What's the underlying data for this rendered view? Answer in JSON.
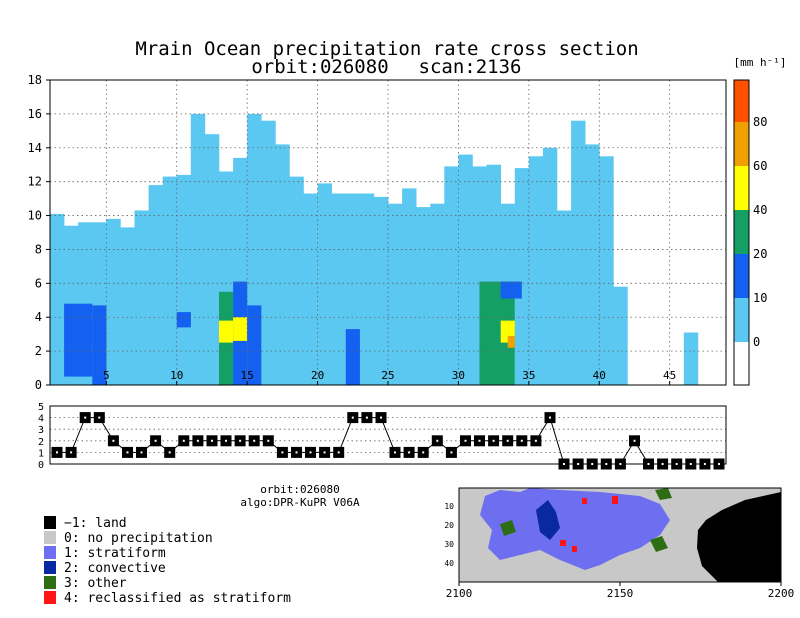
{
  "title": {
    "line1": "Mrain Ocean precipitation rate cross section",
    "line2_orbit": "orbit:026080",
    "line2_scan": "scan:2136"
  },
  "info": {
    "orbit": "orbit:026080",
    "algo": "algo:DPR-KuPR V06A"
  },
  "colors": {
    "land": "#000000",
    "no_precip": "#c8c8c8",
    "stratiform": "#6e6ef0",
    "convective": "#0a28a0",
    "other": "#2d6e14",
    "reclassified": "#ff1414",
    "rain_0": "#5ac8f0",
    "rain_10": "#1460f0",
    "rain_20": "#14a064",
    "rain_40": "#ffff00",
    "rain_60": "#f0a000",
    "rain_80": "#ff5000"
  },
  "colorbar": {
    "unit": "[mm h⁻¹]",
    "labels": [
      "0",
      "10",
      "20",
      "40",
      "60",
      "80"
    ]
  },
  "legend": [
    {
      "code": "−1: land",
      "color_key": "land"
    },
    {
      "code": "0: no precipitation",
      "color_key": "no_precip"
    },
    {
      "code": "1: stratiform",
      "color_key": "stratiform"
    },
    {
      "code": "2: convective",
      "color_key": "convective"
    },
    {
      "code": "3: other",
      "color_key": "other"
    },
    {
      "code": "4: reclassified as stratiform",
      "color_key": "reclassified"
    }
  ],
  "chart_data": [
    {
      "type": "heatmap",
      "title": "Mrain Ocean precipitation rate cross section",
      "xlim": [
        1,
        49
      ],
      "ylim": [
        0,
        18
      ],
      "xticks": [
        5,
        10,
        15,
        20,
        25,
        30,
        35,
        40,
        45
      ],
      "yticks": [
        0,
        2,
        4,
        6,
        8,
        10,
        12,
        14,
        16,
        18
      ],
      "grid": true,
      "column_top_km": [
        10.1,
        9.4,
        9.6,
        9.6,
        9.8,
        9.3,
        10.3,
        11.8,
        12.3,
        12.4,
        16.0,
        14.8,
        12.6,
        13.4,
        16.0,
        15.6,
        14.2,
        12.3,
        11.3,
        11.9,
        11.3,
        11.3,
        11.3,
        11.1,
        10.7,
        11.6,
        10.5,
        10.7,
        12.9,
        13.6,
        12.9,
        13.0,
        10.7,
        12.8,
        13.5,
        14.0,
        10.3,
        15.6,
        14.2,
        13.5,
        5.8,
        0,
        0,
        0,
        0,
        3.1,
        0,
        0
      ],
      "rain_blocks": [
        {
          "x0": 2,
          "x1": 4,
          "y0": 0.5,
          "y1": 4.8,
          "level": "10"
        },
        {
          "x0": 4,
          "x1": 5,
          "y0": 0,
          "y1": 4.7,
          "level": "10"
        },
        {
          "x0": 10,
          "x1": 11,
          "y0": 3.4,
          "y1": 4.3,
          "level": "10"
        },
        {
          "x0": 13,
          "x1": 14,
          "y0": 0,
          "y1": 5.5,
          "level": "20"
        },
        {
          "x0": 13,
          "x1": 14,
          "y0": 2.5,
          "y1": 3.8,
          "level": "40"
        },
        {
          "x0": 14,
          "x1": 15,
          "y0": 0,
          "y1": 6.1,
          "level": "10"
        },
        {
          "x0": 14,
          "x1": 15,
          "y0": 2.6,
          "y1": 4.0,
          "level": "40"
        },
        {
          "x0": 15,
          "x1": 16,
          "y0": 0,
          "y1": 4.7,
          "level": "10"
        },
        {
          "x0": 22,
          "x1": 23,
          "y0": 0,
          "y1": 3.3,
          "level": "10"
        },
        {
          "x0": 31.5,
          "x1": 34,
          "y0": 0,
          "y1": 6.1,
          "level": "20"
        },
        {
          "x0": 33,
          "x1": 34,
          "y0": 2.5,
          "y1": 3.8,
          "level": "40"
        },
        {
          "x0": 33.5,
          "x1": 34,
          "y0": 2.2,
          "y1": 2.9,
          "level": "60"
        },
        {
          "x0": 33,
          "x1": 34.5,
          "y0": 5.1,
          "y1": 6.1,
          "level": "10"
        }
      ]
    },
    {
      "type": "line",
      "title": "",
      "ylim": [
        0,
        5
      ],
      "yticks": [
        0,
        1,
        2,
        3,
        4,
        5
      ],
      "x": [
        1,
        2,
        3,
        4,
        5,
        6,
        7,
        8,
        9,
        10,
        11,
        12,
        13,
        14,
        15,
        16,
        17,
        18,
        19,
        20,
        21,
        22,
        23,
        24,
        25,
        26,
        27,
        28,
        29,
        30,
        31,
        32,
        33,
        34,
        35,
        36,
        37,
        38,
        39,
        40,
        41,
        42,
        43,
        44,
        45,
        46,
        47,
        48
      ],
      "values": [
        1,
        1,
        4,
        4,
        2,
        1,
        1,
        2,
        1,
        2,
        2,
        2,
        2,
        2,
        2,
        2,
        1,
        1,
        1,
        1,
        1,
        4,
        4,
        4,
        1,
        1,
        1,
        2,
        1,
        2,
        2,
        2,
        2,
        2,
        2,
        4,
        0,
        0,
        0,
        0,
        0,
        2,
        0,
        0,
        0,
        0,
        0,
        0
      ]
    },
    {
      "type": "heatmap",
      "title": "",
      "xticks": [
        2100,
        2150,
        2200
      ],
      "yticks": [
        10,
        20,
        30,
        40
      ]
    }
  ]
}
